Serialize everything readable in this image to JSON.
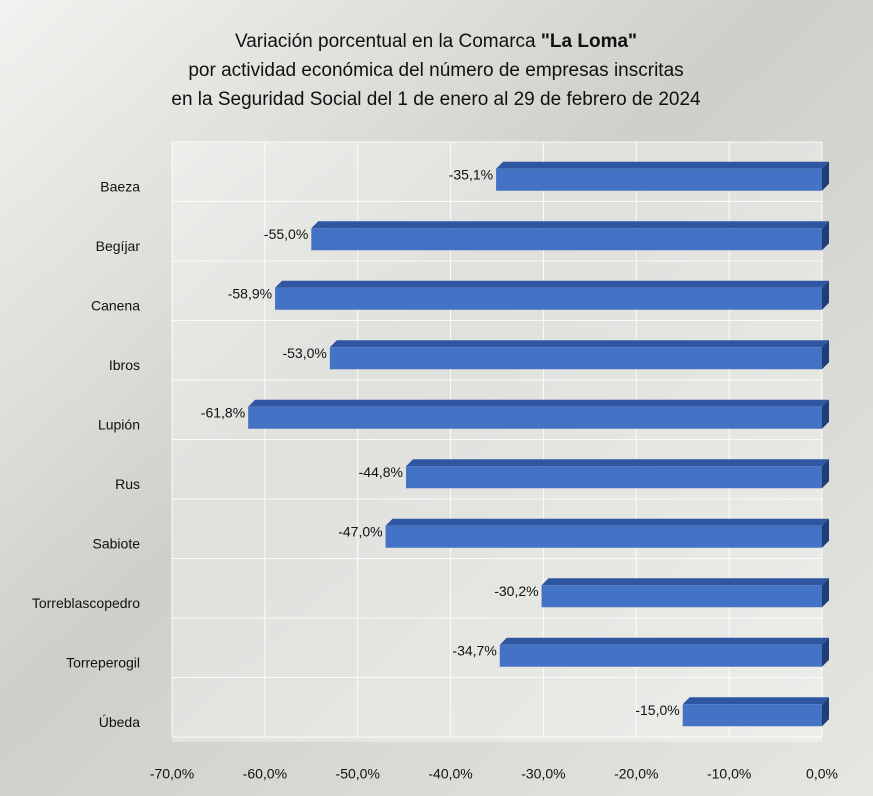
{
  "chart_data": {
    "type": "bar",
    "orientation": "horizontal",
    "title": [
      "Variación porcentual en la Comarca",
      "\"La Loma\"",
      "por actividad económica del número de empresas inscritas",
      "en la Seguridad Social del 1 de enero al 29 de febrero de 2024"
    ],
    "categories": [
      "Baeza",
      "Begíjar",
      "Canena",
      "Ibros",
      "Lupión",
      "Rus",
      "Sabiote",
      "Torreblascopedro",
      "Torreperogil",
      "Úbeda"
    ],
    "values": [
      -35.1,
      -55.0,
      -58.9,
      -53.0,
      -61.8,
      -44.8,
      -47.0,
      -30.2,
      -34.7,
      -15.0
    ],
    "value_labels": [
      "-35,1%",
      "-55,0%",
      "-58,9%",
      "-53,0%",
      "-61,8%",
      "-44,8%",
      "-47,0%",
      "-30,2%",
      "-34,7%",
      "-15,0%"
    ],
    "color": "#4472c4",
    "xlim": [
      -70,
      0
    ],
    "xticks": [
      {
        "value": -70,
        "label": "-70,0%"
      },
      {
        "value": -60,
        "label": "-60,0%"
      },
      {
        "value": -50,
        "label": "-50,0%"
      },
      {
        "value": -40,
        "label": "-40,0%"
      },
      {
        "value": -30,
        "label": "-30,0%"
      },
      {
        "value": -20,
        "label": "-20,0%"
      },
      {
        "value": -10,
        "label": "-10,0%"
      },
      {
        "value": 0,
        "label": "0,0%"
      }
    ],
    "grid": true
  }
}
